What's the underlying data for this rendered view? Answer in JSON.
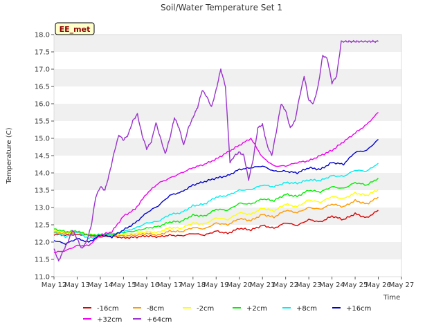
{
  "chart_data": {
    "type": "line",
    "title": "Soil/Water Temperature Set 1",
    "xlabel": "Time",
    "ylabel": "Temperature (C)",
    "station_badge": "EE_met",
    "ylim": [
      11.0,
      18.0
    ],
    "yticks": [
      "11.0",
      "11.5",
      "12.0",
      "12.5",
      "13.0",
      "13.5",
      "14.0",
      "14.5",
      "15.0",
      "15.5",
      "16.0",
      "16.5",
      "17.0",
      "17.5",
      "18.0"
    ],
    "xlim": [
      "May 12",
      "May 27"
    ],
    "xticks": [
      "May 12",
      "May 13",
      "May 14",
      "May 15",
      "May 16",
      "May 17",
      "May 18",
      "May 19",
      "May 20",
      "May 21",
      "May 22",
      "May 23",
      "May 24",
      "May 25",
      "May 26",
      "May 27"
    ],
    "grid": "horizontal bands",
    "legend_position": "bottom",
    "series": [
      {
        "name": "-16cm",
        "color": "#dd0000",
        "x": [
          12,
          12.5,
          13,
          13.5,
          14,
          14.5,
          15,
          15.5,
          16,
          16.5,
          17,
          17.5,
          18,
          18.5,
          19,
          19.5,
          20,
          20.5,
          21,
          21.5,
          22,
          22.5,
          23,
          23.5,
          24,
          24.5,
          25,
          25.5,
          26
        ],
        "y": [
          12.22,
          12.2,
          12.22,
          12.2,
          12.15,
          12.18,
          12.12,
          12.14,
          12.18,
          12.15,
          12.2,
          12.18,
          12.25,
          12.2,
          12.32,
          12.25,
          12.4,
          12.35,
          12.48,
          12.4,
          12.56,
          12.48,
          12.65,
          12.58,
          12.75,
          12.65,
          12.82,
          12.7,
          12.92
        ]
      },
      {
        "name": "-8cm",
        "color": "#ff9900",
        "x": [
          12,
          12.5,
          13,
          13.5,
          14,
          14.5,
          15,
          15.5,
          16,
          16.5,
          17,
          17.5,
          18,
          18.5,
          19,
          19.5,
          20,
          20.5,
          21,
          21.5,
          22,
          22.5,
          23,
          23.5,
          24,
          24.5,
          25,
          25.5,
          26
        ],
        "y": [
          12.28,
          12.25,
          12.28,
          12.22,
          12.18,
          12.2,
          12.18,
          12.2,
          12.25,
          12.2,
          12.32,
          12.3,
          12.42,
          12.38,
          12.55,
          12.5,
          12.68,
          12.62,
          12.8,
          12.72,
          12.92,
          12.85,
          13.0,
          12.95,
          13.1,
          13.02,
          13.2,
          13.1,
          13.3
        ]
      },
      {
        "name": "-2cm",
        "color": "#ffff00",
        "x": [
          12,
          12.5,
          13,
          13.5,
          14,
          14.5,
          15,
          15.5,
          16,
          16.5,
          17,
          17.5,
          18,
          18.5,
          19,
          19.5,
          20,
          20.5,
          21,
          21.5,
          22,
          22.5,
          23,
          23.5,
          24,
          24.5,
          25,
          25.5,
          26
        ],
        "y": [
          12.32,
          12.28,
          12.3,
          12.22,
          12.2,
          12.22,
          12.22,
          12.25,
          12.3,
          12.28,
          12.42,
          12.4,
          12.55,
          12.52,
          12.7,
          12.65,
          12.85,
          12.8,
          12.98,
          12.9,
          13.1,
          13.02,
          13.22,
          13.15,
          13.32,
          13.25,
          13.42,
          13.35,
          13.52
        ]
      },
      {
        "name": "+2cm",
        "color": "#00ee00",
        "x": [
          12,
          12.5,
          13,
          13.5,
          14,
          14.5,
          15,
          15.5,
          16,
          16.5,
          17,
          17.5,
          18,
          18.5,
          19,
          19.5,
          20,
          20.5,
          21,
          21.5,
          22,
          22.5,
          23,
          23.5,
          24,
          24.5,
          25,
          25.5,
          26
        ],
        "y": [
          12.38,
          12.3,
          12.32,
          12.2,
          12.22,
          12.24,
          12.28,
          12.32,
          12.4,
          12.45,
          12.58,
          12.6,
          12.78,
          12.75,
          12.95,
          12.92,
          13.12,
          13.1,
          13.25,
          13.2,
          13.38,
          13.32,
          13.5,
          13.45,
          13.6,
          13.55,
          13.72,
          13.65,
          13.85
        ]
      },
      {
        "name": "+8cm",
        "color": "#00eeee",
        "x": [
          12,
          12.5,
          13,
          13.5,
          14,
          14.5,
          15,
          15.5,
          16,
          16.5,
          17,
          17.5,
          18,
          18.5,
          19,
          19.5,
          20,
          20.5,
          21,
          21.5,
          22,
          22.5,
          23,
          23.5,
          24,
          24.5,
          25,
          25.5,
          26
        ],
        "y": [
          12.3,
          12.15,
          12.3,
          12.1,
          12.2,
          12.2,
          12.3,
          12.4,
          12.55,
          12.6,
          12.8,
          12.85,
          13.05,
          13.1,
          13.3,
          13.35,
          13.5,
          13.52,
          13.65,
          13.6,
          13.72,
          13.7,
          13.8,
          13.78,
          13.92,
          13.9,
          14.08,
          14.05,
          14.28
        ]
      },
      {
        "name": "+16cm",
        "color": "#0000cc",
        "x": [
          12,
          12.5,
          13,
          13.5,
          14,
          14.5,
          15,
          15.5,
          16,
          16.5,
          17,
          17.5,
          18,
          18.5,
          19,
          19.5,
          20,
          20.5,
          21,
          21.5,
          22,
          22.5,
          23,
          23.5,
          24,
          24.5,
          25,
          25.5,
          26
        ],
        "y": [
          12.05,
          11.95,
          12.1,
          12.0,
          12.2,
          12.15,
          12.35,
          12.55,
          12.85,
          13.05,
          13.35,
          13.45,
          13.65,
          13.75,
          13.85,
          13.92,
          14.1,
          14.15,
          14.2,
          14.05,
          14.05,
          14.0,
          14.15,
          14.1,
          14.3,
          14.25,
          14.6,
          14.65,
          14.97
        ]
      },
      {
        "name": "+32cm",
        "color": "#ee00ee",
        "x": [
          12,
          12.5,
          13,
          13.5,
          14,
          14.5,
          15,
          15.5,
          16,
          16.5,
          17,
          17.5,
          18,
          18.5,
          19,
          19.5,
          20,
          20.5,
          21,
          21.5,
          22,
          22.5,
          23,
          23.5,
          24,
          24.5,
          25,
          25.5,
          26
        ],
        "y": [
          11.7,
          11.75,
          11.9,
          11.9,
          12.2,
          12.3,
          12.75,
          12.95,
          13.4,
          13.7,
          13.85,
          14.0,
          14.15,
          14.25,
          14.4,
          14.6,
          14.8,
          15.0,
          14.45,
          14.2,
          14.2,
          14.3,
          14.35,
          14.5,
          14.65,
          14.9,
          15.15,
          15.4,
          15.75
        ]
      },
      {
        "name": "+64cm",
        "color": "#9933cc",
        "x": [
          12,
          12.2,
          12.4,
          12.6,
          12.8,
          13,
          13.2,
          13.4,
          13.6,
          13.8,
          14,
          14.2,
          14.4,
          14.6,
          14.8,
          15,
          15.2,
          15.4,
          15.6,
          15.8,
          16,
          16.2,
          16.4,
          16.6,
          16.8,
          17,
          17.2,
          17.4,
          17.6,
          17.8,
          18,
          18.2,
          18.4,
          18.6,
          18.8,
          19,
          19.2,
          19.4,
          19.6,
          19.8,
          20,
          20.2,
          20.4,
          20.6,
          20.8,
          21,
          21.2,
          21.4,
          21.6,
          21.8,
          22,
          22.2,
          22.4,
          22.6,
          22.8,
          23,
          23.2,
          23.4,
          23.6,
          23.8,
          24,
          24.2,
          24.4,
          24.6,
          24.8,
          25,
          25.2,
          25.4,
          25.6,
          25.8,
          26
        ],
        "y": [
          11.8,
          11.45,
          11.75,
          12.0,
          12.35,
          12.1,
          11.8,
          12.0,
          12.45,
          13.3,
          13.6,
          13.5,
          14.0,
          14.6,
          15.1,
          14.95,
          15.1,
          15.5,
          15.7,
          15.1,
          14.7,
          14.9,
          15.45,
          15.0,
          14.55,
          15.0,
          15.6,
          15.3,
          14.8,
          15.3,
          15.6,
          15.9,
          16.4,
          16.2,
          15.9,
          16.4,
          17.0,
          16.5,
          14.3,
          14.5,
          14.6,
          14.5,
          13.8,
          14.4,
          15.3,
          15.4,
          14.8,
          14.5,
          15.2,
          16.0,
          15.8,
          15.3,
          15.5,
          16.2,
          16.8,
          16.1,
          16.0,
          16.5,
          17.4,
          17.3,
          16.6,
          16.8,
          17.8,
          17.8,
          17.8,
          17.8,
          17.8,
          17.8,
          17.8,
          17.8,
          17.8
        ]
      }
    ]
  }
}
